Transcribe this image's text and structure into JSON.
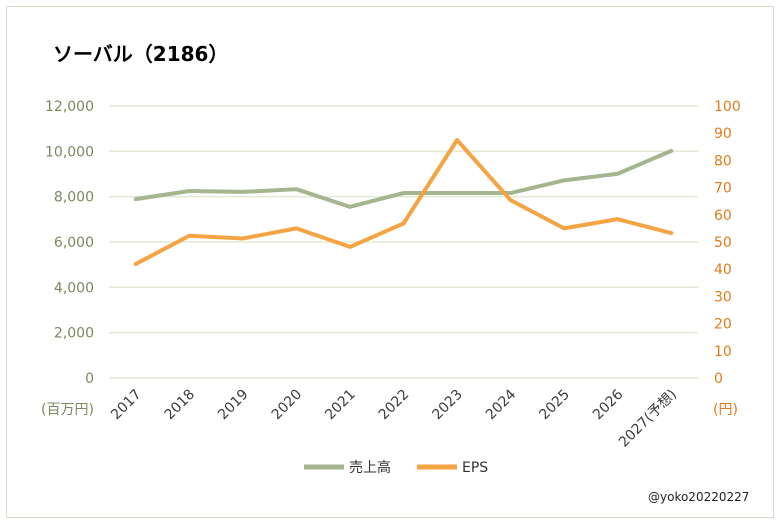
{
  "chart_data": {
    "type": "line",
    "title": "ソーバル（2186）",
    "categories": [
      "2017",
      "2018",
      "2019",
      "2020",
      "2021",
      "2022",
      "2023",
      "2024",
      "2025",
      "2026",
      "2027(予想)"
    ],
    "series": [
      {
        "name": "売上高",
        "axis": "left",
        "color": "#a5b58f",
        "values": [
          7890,
          8250,
          8210,
          8330,
          7550,
          8160,
          8160,
          8160,
          8720,
          9010,
          10020
        ]
      },
      {
        "name": "EPS",
        "axis": "right",
        "color": "#f4a443",
        "values": [
          41.9,
          52.3,
          51.3,
          55.0,
          48.2,
          56.8,
          87.5,
          65.4,
          55.0,
          58.4,
          53.3
        ]
      }
    ],
    "left_axis": {
      "unit_label": "(百万円)",
      "ylim": [
        0,
        12000
      ],
      "ticks": [
        "0",
        "2,000",
        "4,000",
        "6,000",
        "8,000",
        "10,000",
        "12,000"
      ],
      "color": "#7a8a5e"
    },
    "right_axis": {
      "unit_label": "(円)",
      "ylim": [
        0,
        100
      ],
      "ticks": [
        "0",
        "10",
        "20",
        "30",
        "40",
        "50",
        "60",
        "70",
        "80",
        "90",
        "100"
      ],
      "color": "#e07b1a"
    },
    "grid": true,
    "legend_position": "bottom",
    "gridline_color": "#e6e8d6"
  },
  "credit": "@yoko20220227"
}
